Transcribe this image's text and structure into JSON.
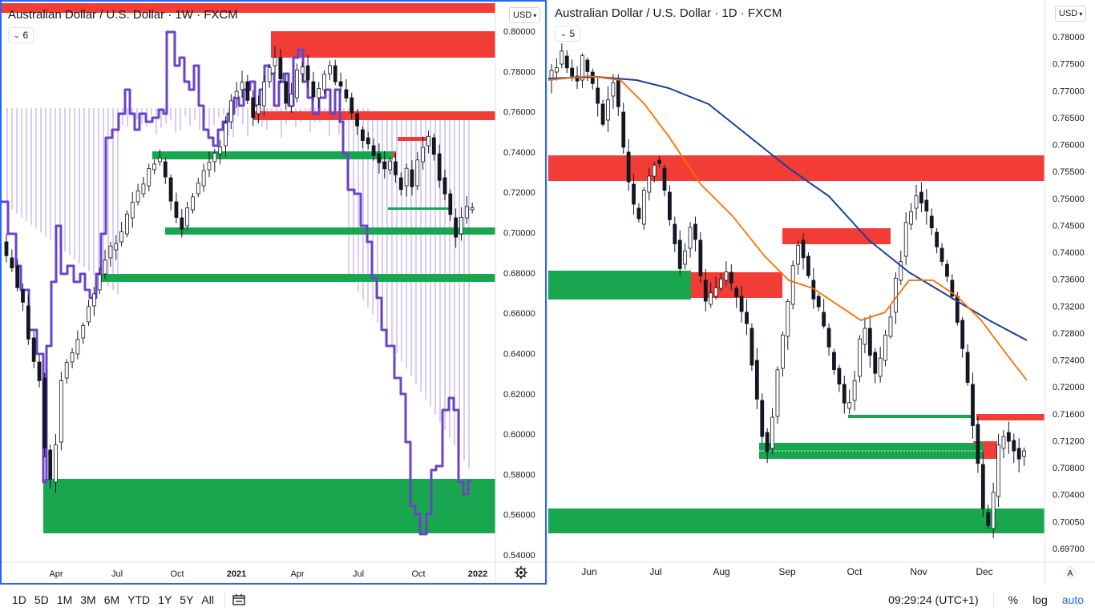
{
  "colors": {
    "supply_zone": "#f23c36",
    "demand_zone": "#18a74f",
    "ema_orange": "#ff6d00",
    "ma_blue": "#1a3fa0",
    "purple_line": "#6a43c7",
    "bear_candle": "#131722",
    "bull_candle": "#ffffff",
    "accent": "#2962ff"
  },
  "left_chart": {
    "title": "Australian Dollar / U.S. Dollar · 1W · FXCM",
    "indicator_badge": "6",
    "currency": "USD",
    "price_axis": [
      "0.80000",
      "0.78000",
      "0.76000",
      "0.74000",
      "0.72000",
      "0.70000",
      "0.68000",
      "0.66000",
      "0.64000",
      "0.62000",
      "0.60000",
      "0.58000",
      "0.56000",
      "0.54000"
    ],
    "time_axis": [
      "Apr",
      "Jul",
      "Oct",
      "2021",
      "Apr",
      "Jul",
      "Oct",
      "2022"
    ]
  },
  "right_chart": {
    "title": "Australian Dollar / U.S. Dollar · 1D · FXCM",
    "indicator_badge": "5",
    "currency": "USD",
    "price_axis": [
      "0.78000",
      "0.77500",
      "0.77000",
      "0.76500",
      "0.76000",
      "0.75500",
      "0.75000",
      "0.74500",
      "0.74000",
      "0.73600",
      "0.73200",
      "0.72800",
      "0.72400",
      "0.72000",
      "0.71600",
      "0.71200",
      "0.70800",
      "0.70400",
      "0.70050",
      "0.69700"
    ],
    "time_axis": [
      "Jun",
      "Jul",
      "Aug",
      "Sep",
      "Oct",
      "Nov",
      "Dec"
    ],
    "axis_corner": "A"
  },
  "bottom_bar": {
    "timeframes": [
      "1D",
      "5D",
      "1M",
      "3M",
      "6M",
      "YTD",
      "1Y",
      "5Y",
      "All"
    ],
    "clock": "09:29:24 (UTC+1)",
    "percent": "%",
    "log": "log",
    "auto": "auto"
  }
}
